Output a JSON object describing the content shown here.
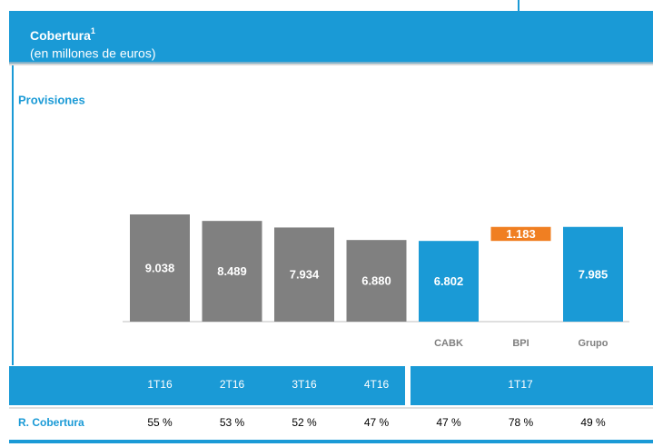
{
  "chart_data": {
    "type": "waterfall",
    "title": "Cobertura",
    "title_note": "1",
    "subtitle": "(en millones de euros)",
    "section": "Provisiones",
    "categories": [
      "1T16",
      "2T16",
      "3T16",
      "4T16",
      "CABK",
      "BPI",
      "Grupo"
    ],
    "values": [
      9038,
      8489,
      7934,
      6880,
      6802,
      1183,
      7985
    ],
    "value_labels": [
      "9.038",
      "8.489",
      "7.934",
      "6.880",
      "6.802",
      "1.183",
      "7.985"
    ],
    "measures": [
      "total",
      "total",
      "total",
      "total",
      "total",
      "relative",
      "total"
    ],
    "colors": [
      "#808080",
      "#808080",
      "#808080",
      "#808080",
      "#1a9ad6",
      "#f07f22",
      "#1a9ad6"
    ],
    "group_label": "1T17",
    "table": {
      "label": "R. Cobertura",
      "values": [
        "55 %",
        "53 %",
        "52 %",
        "47 %",
        "47 %",
        "78 %",
        "49 %"
      ]
    }
  }
}
